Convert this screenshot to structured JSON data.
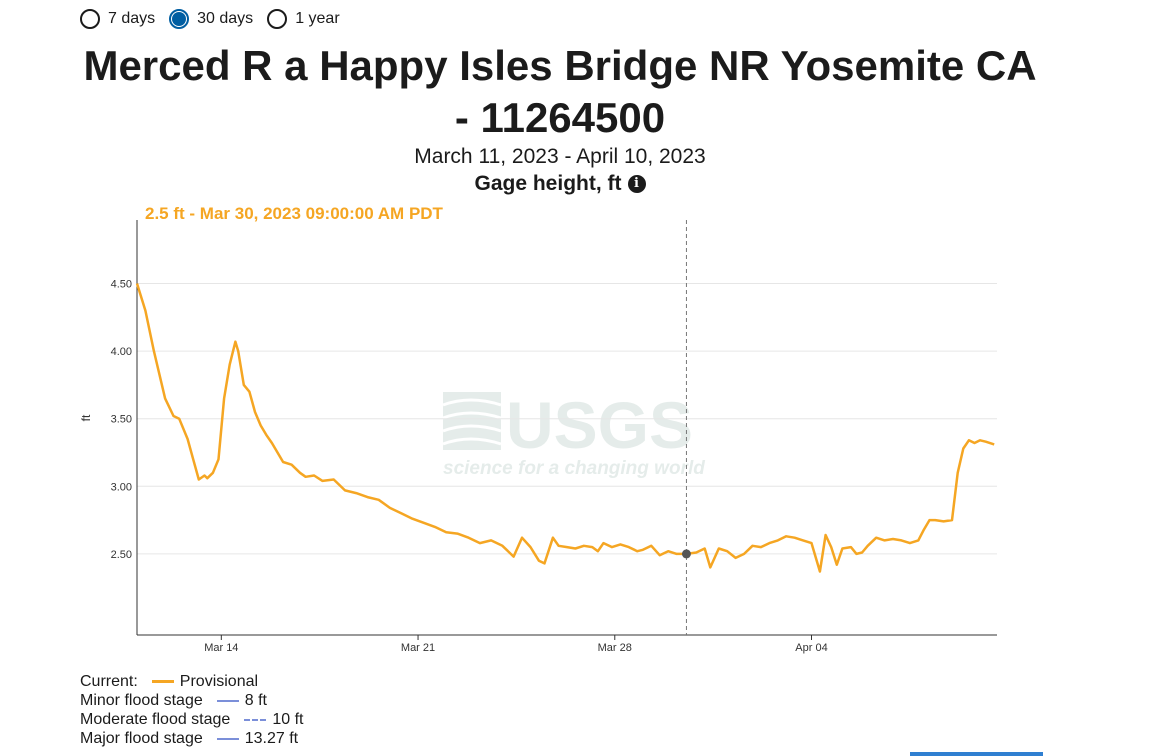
{
  "range_options": [
    {
      "label": "7 days",
      "selected": false
    },
    {
      "label": "30 days",
      "selected": true
    },
    {
      "label": "1 year",
      "selected": false
    }
  ],
  "title_line1": "Merced R a Happy Isles Bridge NR Yosemite CA",
  "title_line2": "- 11264500",
  "date_range": "March 11, 2023 - April 10, 2023",
  "parameter": "Gage height, ft",
  "info_icon": "info-icon",
  "tooltip": "2.5 ft - Mar 30, 2023 09:00:00 AM PDT",
  "watermark": {
    "logo": "USGS",
    "tagline": "science for a changing world"
  },
  "legend": {
    "current_label": "Current:",
    "current_series": "Provisional",
    "minor_label": "Minor flood stage",
    "minor_value": "8 ft",
    "moderate_label": "Moderate flood stage",
    "moderate_value": "10 ft",
    "major_label": "Major flood stage",
    "major_value": "13.27 ft"
  },
  "colors": {
    "series": "#f5a623",
    "flood": "#7b8fd9",
    "selected": "#005ea2",
    "grid": "#e6e6e6",
    "cursor_point": "#555555"
  },
  "chart_data": {
    "type": "line",
    "ylabel": "ft",
    "ylim": [
      1.9,
      4.97
    ],
    "xlim": [
      0,
      30.6
    ],
    "x_tick_positions_days": [
      3,
      10,
      17,
      24
    ],
    "x_tick_labels": [
      "Mar 14",
      "Mar 21",
      "Mar 28",
      "Apr 04"
    ],
    "y_ticks": [
      2.5,
      3.0,
      3.5,
      4.0,
      4.5
    ],
    "y_tick_labels": [
      "2.50",
      "3.00",
      "3.50",
      "4.00",
      "4.50"
    ],
    "grid": true,
    "cursor": {
      "day": 19.55,
      "value": 2.5
    },
    "series": [
      {
        "name": "Provisional",
        "x_days": [
          0.0,
          0.3,
          0.6,
          1.0,
          1.3,
          1.5,
          1.8,
          2.0,
          2.2,
          2.4,
          2.5,
          2.7,
          2.9,
          3.1,
          3.3,
          3.5,
          3.6,
          3.8,
          4.0,
          4.2,
          4.4,
          4.6,
          4.8,
          5.0,
          5.2,
          5.5,
          5.8,
          6.0,
          6.3,
          6.6,
          7.0,
          7.4,
          7.8,
          8.2,
          8.6,
          9.0,
          9.4,
          9.8,
          10.2,
          10.6,
          11.0,
          11.4,
          11.8,
          12.2,
          12.6,
          13.0,
          13.4,
          13.7,
          14.0,
          14.3,
          14.5,
          14.8,
          15.0,
          15.3,
          15.6,
          15.9,
          16.2,
          16.4,
          16.6,
          16.9,
          17.2,
          17.5,
          17.8,
          18.0,
          18.3,
          18.6,
          18.9,
          19.2,
          19.55,
          19.9,
          20.2,
          20.4,
          20.7,
          21.0,
          21.3,
          21.6,
          21.9,
          22.2,
          22.5,
          22.8,
          23.1,
          23.4,
          23.7,
          24.0,
          24.3,
          24.5,
          24.7,
          24.9,
          25.1,
          25.4,
          25.6,
          25.8,
          26.0,
          26.3,
          26.6,
          26.9,
          27.2,
          27.5,
          27.8,
          28.0,
          28.2,
          28.4,
          28.7,
          29.0,
          29.2,
          29.4,
          29.6,
          29.8,
          30.0,
          30.2,
          30.5
        ],
        "y_ft": [
          4.5,
          4.3,
          4.0,
          3.65,
          3.52,
          3.5,
          3.35,
          3.2,
          3.05,
          3.08,
          3.06,
          3.1,
          3.2,
          3.65,
          3.9,
          4.07,
          4.0,
          3.75,
          3.7,
          3.55,
          3.45,
          3.38,
          3.32,
          3.25,
          3.18,
          3.16,
          3.1,
          3.07,
          3.08,
          3.04,
          3.05,
          2.97,
          2.95,
          2.92,
          2.9,
          2.84,
          2.8,
          2.76,
          2.73,
          2.7,
          2.66,
          2.65,
          2.62,
          2.58,
          2.6,
          2.56,
          2.48,
          2.62,
          2.55,
          2.45,
          2.43,
          2.62,
          2.56,
          2.55,
          2.54,
          2.56,
          2.55,
          2.52,
          2.58,
          2.55,
          2.57,
          2.55,
          2.52,
          2.53,
          2.56,
          2.49,
          2.52,
          2.5,
          2.5,
          2.51,
          2.54,
          2.4,
          2.54,
          2.52,
          2.47,
          2.5,
          2.56,
          2.55,
          2.58,
          2.6,
          2.63,
          2.62,
          2.6,
          2.58,
          2.37,
          2.64,
          2.55,
          2.42,
          2.54,
          2.55,
          2.5,
          2.51,
          2.56,
          2.62,
          2.6,
          2.61,
          2.6,
          2.58,
          2.6,
          2.68,
          2.75,
          2.75,
          2.74,
          2.75,
          3.1,
          3.28,
          3.34,
          3.32,
          3.34,
          3.33,
          3.31
        ]
      }
    ]
  }
}
